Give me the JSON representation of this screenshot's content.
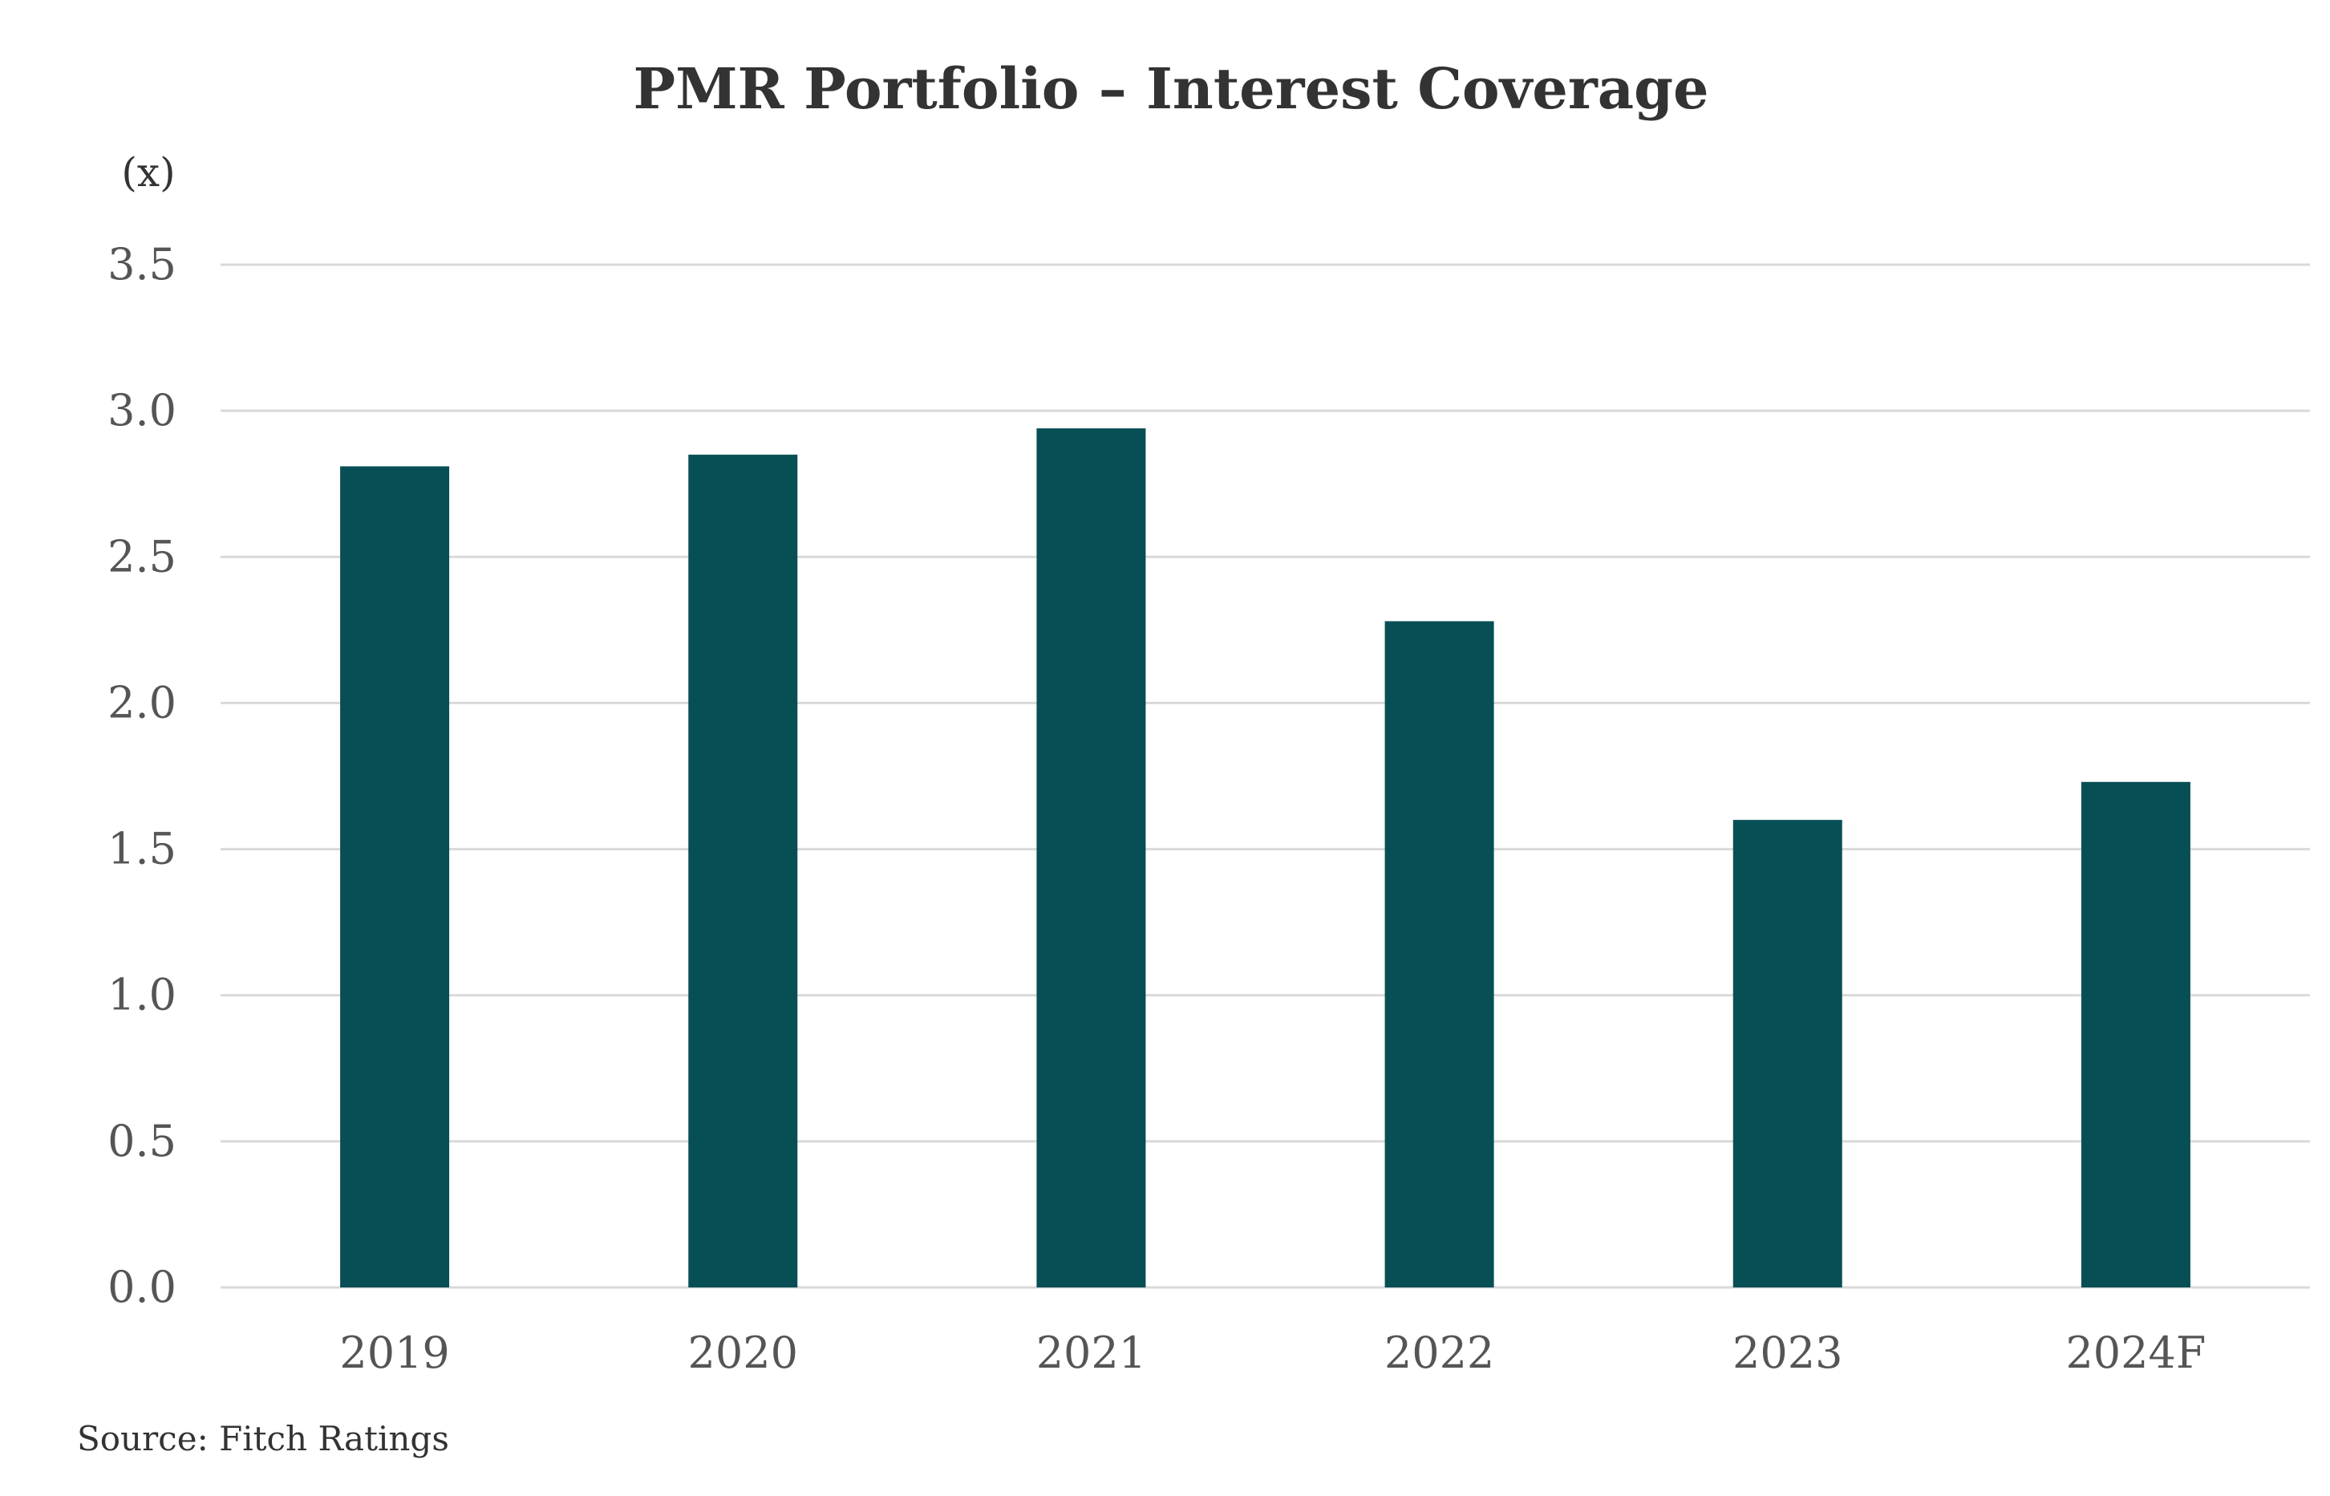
{
  "chart_data": {
    "type": "bar",
    "title": "PMR Portfolio – Interest Coverage",
    "unit_label": "(x)",
    "categories": [
      "2019",
      "2020",
      "2021",
      "2022",
      "2023",
      "2024F"
    ],
    "series": [
      {
        "values": [
          2.81,
          2.85,
          2.94,
          2.28,
          1.6,
          1.73
        ],
        "color": "#074f55"
      }
    ],
    "y_ticks": [
      "0.0",
      "0.5",
      "1.0",
      "1.5",
      "2.0",
      "2.5",
      "3.0",
      "3.5"
    ],
    "ylim": [
      0,
      3.5
    ],
    "grid": true,
    "legend": "none",
    "source": "Source: Fitch Ratings"
  }
}
